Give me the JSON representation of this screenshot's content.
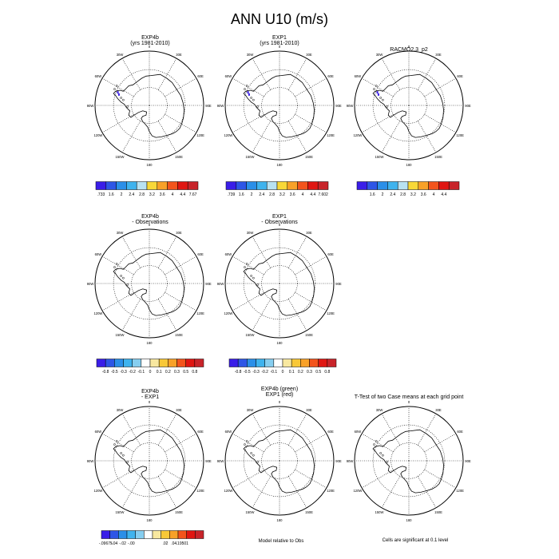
{
  "title": "ANN U10 (m/s)",
  "lon_labels": [
    "0",
    "30E",
    "60E",
    "90E",
    "120E",
    "150E",
    "180",
    "150W",
    "120W",
    "90W",
    "60W",
    "30W"
  ],
  "panels": [
    {
      "id": "p1",
      "title": "EXP4b",
      "subtitle": "(yrs 1981-2010)"
    },
    {
      "id": "p2",
      "title": "EXP1",
      "subtitle": "(yrs 1981-2010)"
    },
    {
      "id": "p3",
      "title": "RACMO2.3_p2",
      "subtitle": ""
    },
    {
      "id": "p4",
      "title": "EXP4b",
      "subtitle": "- Observations"
    },
    {
      "id": "p5",
      "title": "EXP1",
      "subtitle": "- Observations"
    },
    {
      "id": "p6",
      "title": "EXP4b",
      "subtitle": "- EXP1"
    },
    {
      "id": "p7",
      "title": "EXP4b (green)",
      "subtitle": "EXP1 (red)"
    },
    {
      "id": "p8",
      "title": "T-Test of two Case means at each grid point",
      "subtitle": ""
    }
  ],
  "colorbars": [
    {
      "id": "cb1",
      "colors": [
        "#3a1ee8",
        "#2e56e6",
        "#2b8fe8",
        "#3fb3ee",
        "#b8e2f2",
        "#f8d838",
        "#f8a128",
        "#f3541c",
        "#e01612",
        "#c8242a"
      ],
      "labels": [
        ".733",
        "1.6",
        "2",
        "2.4",
        "2.8",
        "3.2",
        "3.6",
        "4",
        "4.4",
        "7.67"
      ]
    },
    {
      "id": "cb2",
      "colors": [
        "#3a1ee8",
        "#2e56e6",
        "#2b8fe8",
        "#3fb3ee",
        "#b8e2f2",
        "#f8d838",
        "#f8a128",
        "#f3541c",
        "#e01612",
        "#c8242a"
      ],
      "labels": [
        ".739",
        "1.6",
        "2",
        "2.4",
        "2.8",
        "3.2",
        "3.6",
        "4",
        "4.4",
        "7.602"
      ]
    },
    {
      "id": "cb3",
      "colors": [
        "#3a1ee8",
        "#2e56e6",
        "#2b8fe8",
        "#3fb3ee",
        "#b8e2f2",
        "#f8d838",
        "#f8a128",
        "#f3541c",
        "#e01612",
        "#c8242a"
      ],
      "labels": [
        "",
        "1.6",
        "2",
        "2.4",
        "2.8",
        "3.2",
        "3.6",
        "4",
        "4.4",
        ""
      ]
    },
    {
      "id": "cb4",
      "colors": [
        "#3a1ee8",
        "#2e56e6",
        "#2b8fe8",
        "#3fb3ee",
        "#86cef0",
        "#ffffff",
        "#f8e8a0",
        "#f8c838",
        "#f8a128",
        "#f3541c",
        "#e01612",
        "#c8242a"
      ],
      "labels": [
        "",
        "-0.8",
        "-0.5",
        "-0.3",
        "-0.2",
        "-0.1",
        "0",
        "0.1",
        "0.2",
        "0.3",
        "0.5",
        "0.8",
        ""
      ]
    },
    {
      "id": "cb5",
      "colors": [
        "#3a1ee8",
        "#2e56e6",
        "#2b8fe8",
        "#3fb3ee",
        "#86cef0",
        "#ffffff",
        "#f8e8a0",
        "#f8c838",
        "#f8a128",
        "#f3541c",
        "#e01612",
        "#c8242a"
      ],
      "labels": [
        "",
        "-0.8",
        "-0.5",
        "-0.3",
        "-0.2",
        "-0.1",
        "0",
        "0.1",
        "0.2",
        "0.3",
        "0.5",
        "0.8",
        ""
      ]
    },
    {
      "id": "cb6",
      "colors": [
        "#3a1ee8",
        "#2e56e6",
        "#2b8fe8",
        "#3fb3ee",
        "#86cef0",
        "#ffffff",
        "#f8e8a0",
        "#f8c838",
        "#f8a128",
        "#f3541c",
        "#e01612",
        "#c8242a"
      ],
      "labels": [
        "-.09675",
        "-.04",
        "-.02",
        "-.00",
        "",
        "",
        "",
        ".02",
        ".04",
        ".19501"
      ]
    }
  ],
  "notes": {
    "model_relative": "Model relative to Obs",
    "significance": "Cells are significant at 0.1 level"
  }
}
